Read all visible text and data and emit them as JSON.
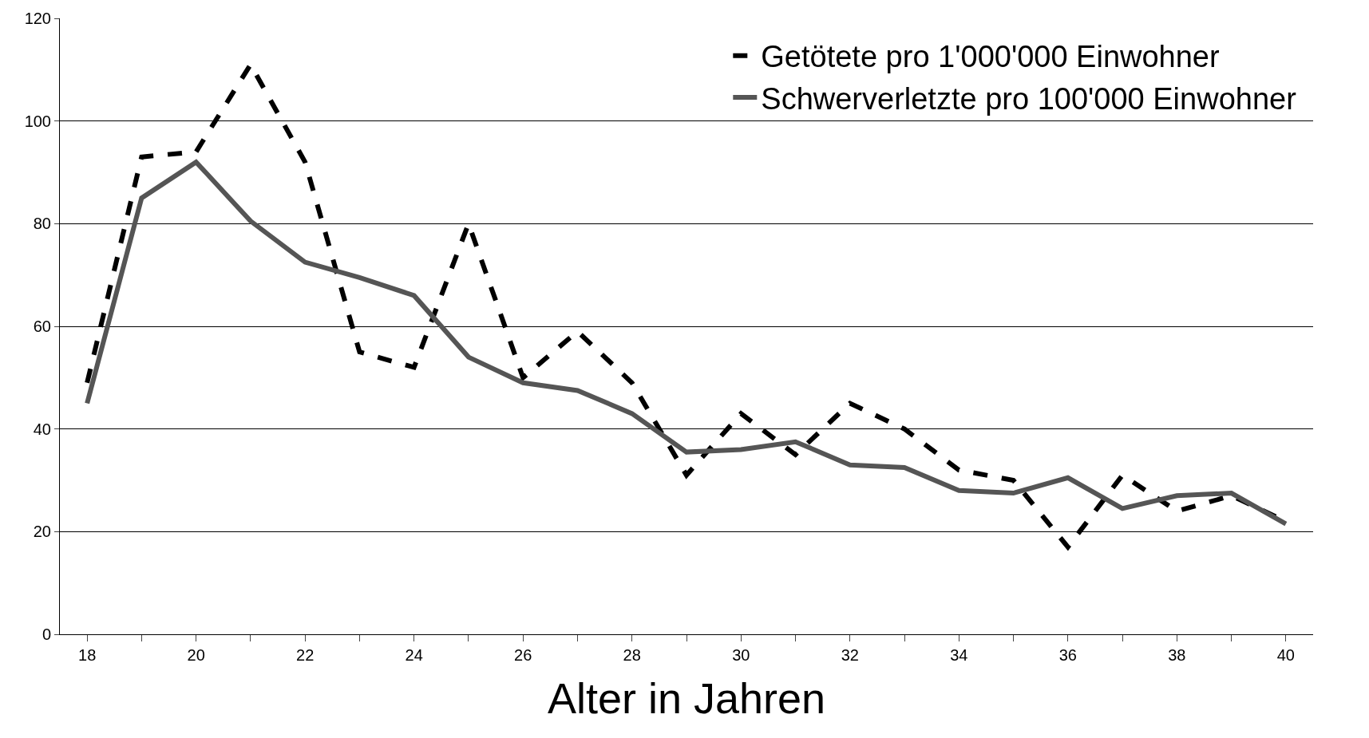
{
  "chart_data": {
    "type": "line",
    "xlabel": "Alter in Jahren",
    "x": [
      18,
      19,
      20,
      21,
      22,
      23,
      24,
      25,
      26,
      27,
      28,
      29,
      30,
      31,
      32,
      33,
      34,
      35,
      36,
      37,
      38,
      39,
      40
    ],
    "series": [
      {
        "name": "Getötete pro 1'000'000 Einwohner",
        "color": "#000000",
        "line_style": "dashed",
        "values": [
          49,
          93,
          94,
          111,
          92,
          55,
          52,
          80,
          50,
          59,
          49,
          31,
          43,
          35,
          45,
          40,
          32,
          30,
          17,
          31,
          24,
          27,
          22
        ]
      },
      {
        "name": "Schwerverletzte pro 100'000 Einwohner",
        "color": "#555555",
        "line_style": "solid",
        "values": [
          45,
          85,
          92,
          80.5,
          72.5,
          69.5,
          66,
          54,
          49,
          47.5,
          43,
          35.5,
          36,
          37.5,
          33,
          32.5,
          28,
          27.5,
          30.5,
          24.5,
          27,
          27.5,
          21.5
        ]
      }
    ],
    "xlim": [
      17.5,
      40.5
    ],
    "ylim": [
      0,
      120
    ],
    "xticks": [
      18,
      {
        "value": 19,
        "label": null
      },
      20,
      {
        "value": 21,
        "label": null
      },
      22,
      {
        "value": 23,
        "label": null
      },
      24,
      {
        "value": 25,
        "label": null
      },
      26,
      {
        "value": 27,
        "label": null
      },
      28,
      {
        "value": 29,
        "label": null
      },
      30,
      {
        "value": 31,
        "label": null
      },
      32,
      {
        "value": 33,
        "label": null
      },
      34,
      {
        "value": 35,
        "label": null
      },
      36,
      {
        "value": 37,
        "label": null
      },
      38,
      {
        "value": 39,
        "label": null
      },
      40
    ],
    "yticks": [
      0,
      20,
      40,
      60,
      80,
      100,
      120
    ],
    "grid": "y",
    "legend": "top right",
    "marker": "none"
  }
}
